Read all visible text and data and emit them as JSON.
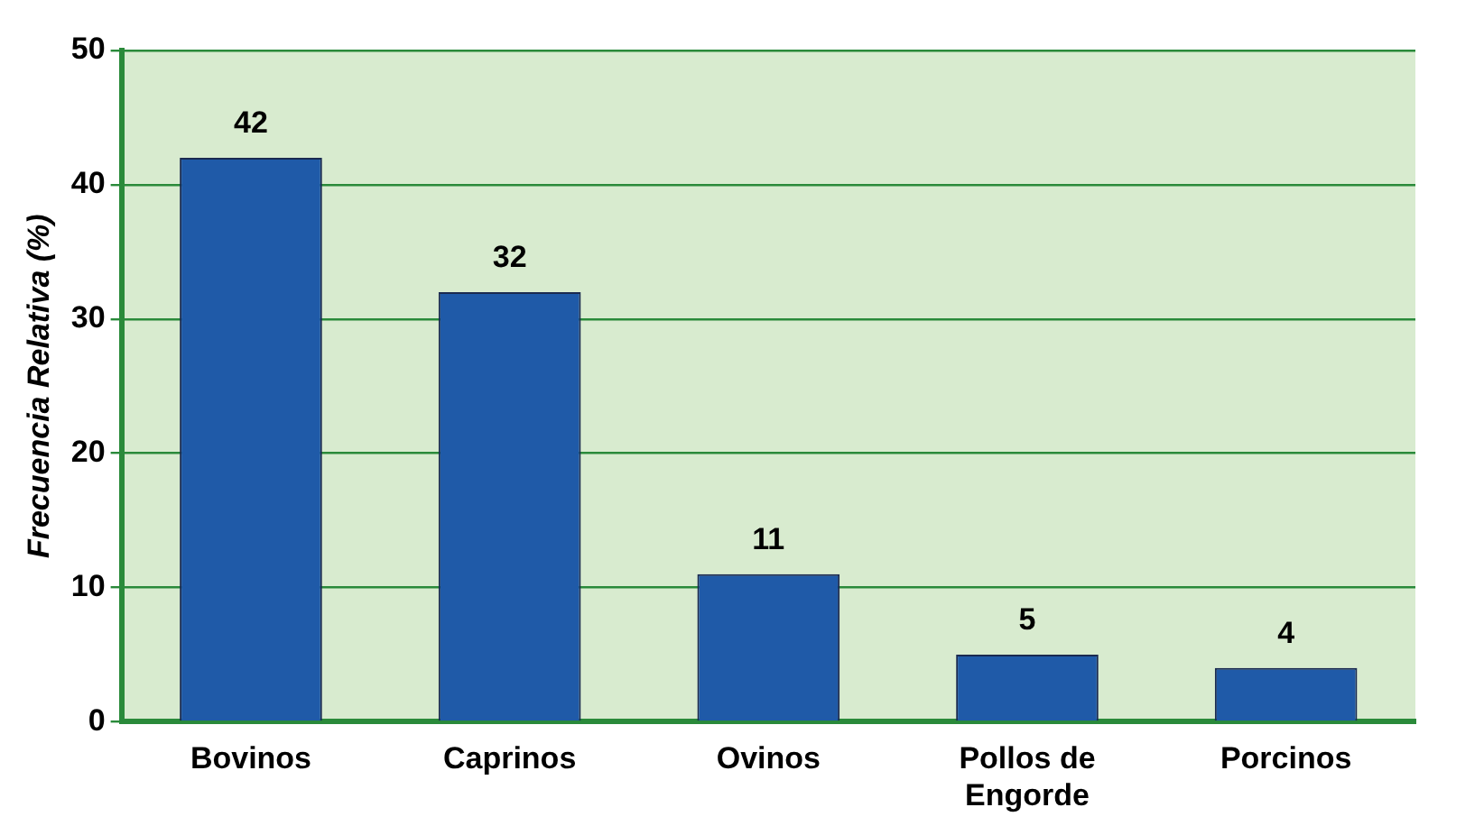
{
  "chart_data": {
    "type": "bar",
    "ylabel": "Frecuencia Relativa (%)",
    "categories": [
      "Bovinos",
      "Caprinos",
      "Ovinos",
      "Pollos de Engorde",
      "Porcinos"
    ],
    "values": [
      42,
      32,
      11,
      5,
      4
    ],
    "color": "#1f5aa8",
    "ylim": [
      0,
      50
    ],
    "yticks": [
      0,
      10,
      20,
      30,
      40,
      50
    ],
    "grid": "y",
    "data_labels": true,
    "legend": false
  }
}
